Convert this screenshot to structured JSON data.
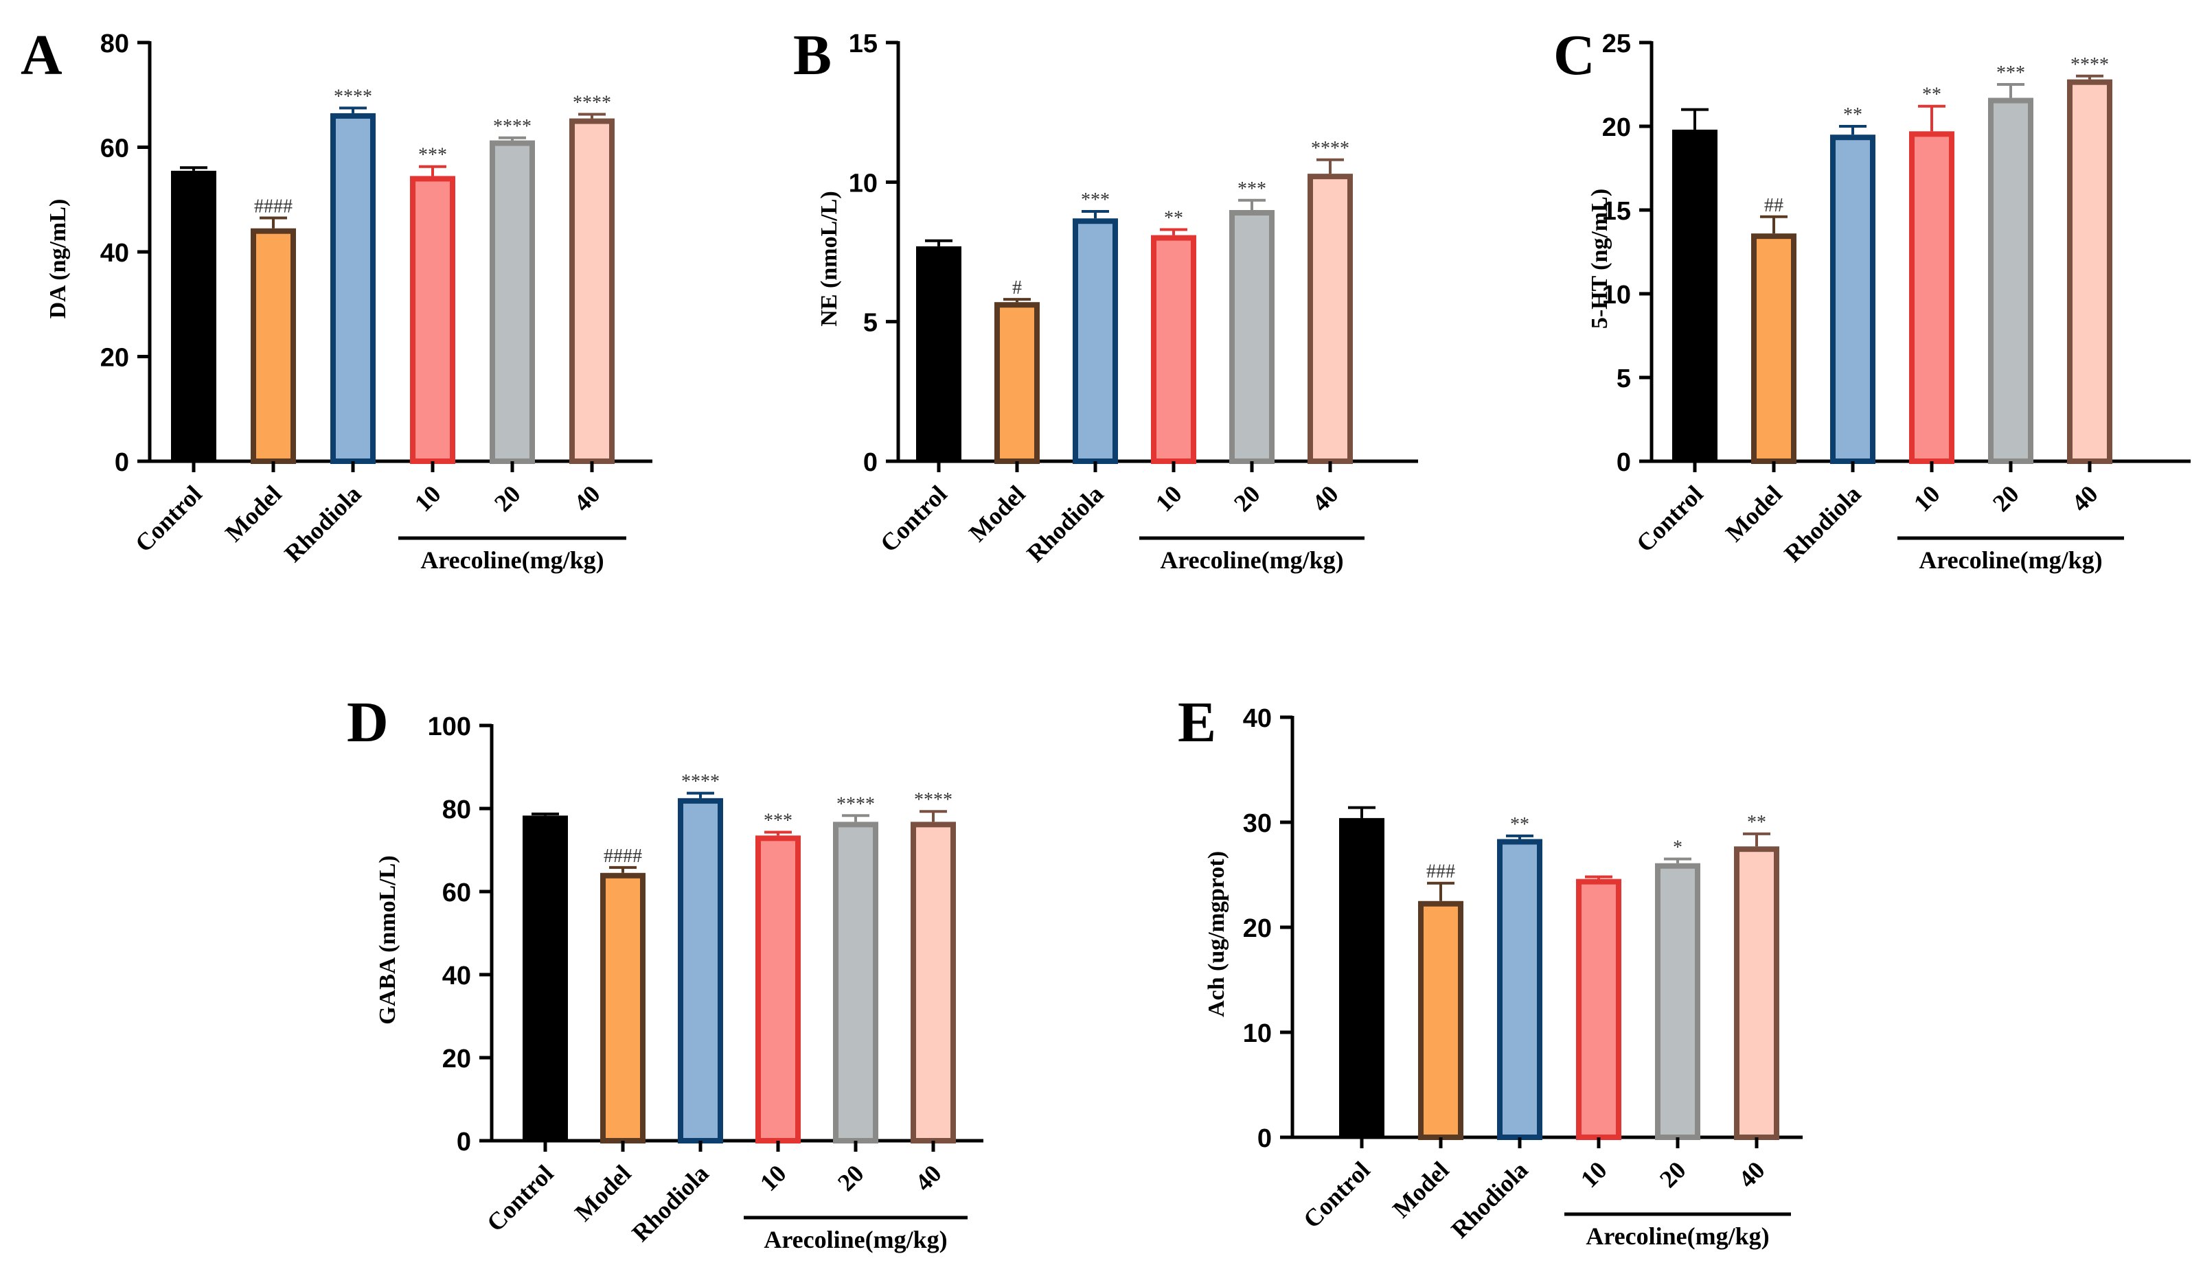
{
  "figure": {
    "categories": [
      "Control",
      "Model",
      "Rhodiola",
      "10",
      "20",
      "40"
    ],
    "group_label": "Arecoline(mg/kg)",
    "bar_fills": [
      "#000000",
      "#fba555",
      "#8eb1d6",
      "#fb8e8a",
      "#b9bec1",
      "#ffcdbf"
    ],
    "bar_strokes": [
      "#000000",
      "#5a3a22",
      "#0c3f6e",
      "#e33532",
      "#8a8a88",
      "#7a5040"
    ]
  },
  "chart_data": [
    {
      "panel": "A",
      "type": "bar",
      "ylabel": "DA (ng/mL)",
      "ylim": [
        0,
        80
      ],
      "yticks": [
        0,
        20,
        40,
        60,
        80
      ],
      "values": [
        55.5,
        44.5,
        66.5,
        54.5,
        61.3,
        65.5
      ],
      "errors": [
        0.6,
        2.0,
        1.0,
        1.8,
        0.5,
        0.8
      ],
      "significance": [
        "",
        "####",
        "****",
        "***",
        "****",
        "****"
      ]
    },
    {
      "panel": "B",
      "type": "bar",
      "ylabel": "NE  (nmoL/L)",
      "ylim": [
        0,
        15
      ],
      "yticks": [
        0,
        5,
        10,
        15
      ],
      "values": [
        7.7,
        5.7,
        8.7,
        8.1,
        9.0,
        10.3
      ],
      "errors": [
        0.2,
        0.1,
        0.25,
        0.2,
        0.35,
        0.5
      ],
      "significance": [
        "",
        "#",
        "***",
        "**",
        "***",
        "****"
      ]
    },
    {
      "panel": "C",
      "type": "bar",
      "ylabel": "5-HT  (ng/mL)",
      "ylim": [
        0,
        25
      ],
      "yticks": [
        0,
        5,
        10,
        15,
        20,
        25
      ],
      "values": [
        19.8,
        13.6,
        19.5,
        19.7,
        21.7,
        22.8
      ],
      "errors": [
        1.2,
        1.0,
        0.5,
        1.5,
        0.8,
        0.2
      ],
      "significance": [
        "",
        "##",
        "**",
        "**",
        "***",
        "****"
      ]
    },
    {
      "panel": "D",
      "type": "bar",
      "ylabel": "GABA (nmoL/L)",
      "ylim": [
        0,
        100
      ],
      "yticks": [
        0,
        20,
        40,
        60,
        80,
        100
      ],
      "values": [
        78.3,
        64.5,
        82.5,
        73.5,
        76.8,
        76.8
      ],
      "errors": [
        0.4,
        1.3,
        1.2,
        0.8,
        1.5,
        2.5
      ],
      "significance": [
        "",
        "####",
        "****",
        "***",
        "****",
        "****"
      ]
    },
    {
      "panel": "E",
      "type": "bar",
      "ylabel": "Ach (ug/mgprot)",
      "ylim": [
        0,
        40
      ],
      "yticks": [
        0,
        10,
        20,
        30,
        40
      ],
      "values": [
        30.4,
        22.5,
        28.4,
        24.6,
        26.1,
        27.7
      ],
      "errors": [
        1.0,
        1.7,
        0.3,
        0.2,
        0.4,
        1.2
      ],
      "significance": [
        "",
        "###",
        "**",
        "",
        "*",
        "**"
      ]
    }
  ]
}
